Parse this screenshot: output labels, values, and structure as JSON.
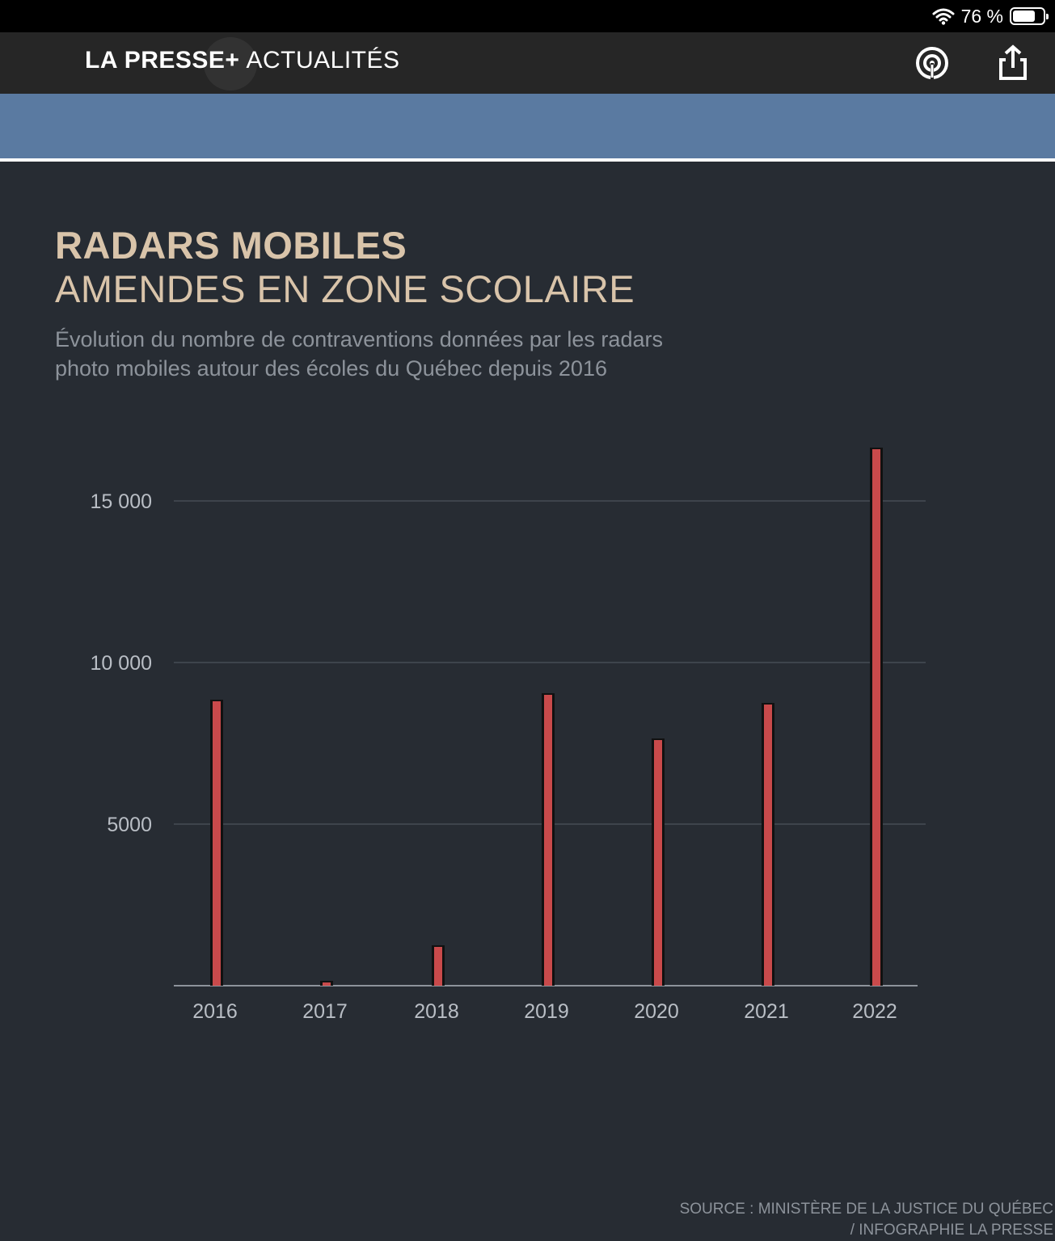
{
  "status_bar": {
    "battery_text": "76 %",
    "battery_level": 0.76
  },
  "header": {
    "brand": "LA PRESSE+",
    "section": "ACTUALITÉS"
  },
  "chart_data": {
    "type": "bar",
    "title": "RADARS MOBILES",
    "subtitle": "AMENDES EN ZONE SCOLAIRE",
    "description": "Évolution du nombre de contraventions données par les radars photo mobiles autour des écoles du Québec depuis 2016",
    "categories": [
      "2016",
      "2017",
      "2018",
      "2019",
      "2020",
      "2021",
      "2022"
    ],
    "values": [
      8800,
      100,
      1200,
      9000,
      7600,
      8700,
      16600
    ],
    "yticks": [
      {
        "value": 5000,
        "label": "5000"
      },
      {
        "value": 10000,
        "label": "10 000"
      },
      {
        "value": 15000,
        "label": "15 000"
      }
    ],
    "ylim": [
      0,
      16600
    ],
    "grid": true,
    "colors": {
      "bar": "#c94a4b",
      "bar_outline": "#111111",
      "grid": "#474c54",
      "axis": "#8d939b",
      "tick_text": "#b9bec5"
    }
  },
  "source_line1": "SOURCE : MINISTÈRE DE LA JUSTICE DU QUÉBEC",
  "source_line2": "/ INFOGRAPHIE LA PRESSE"
}
